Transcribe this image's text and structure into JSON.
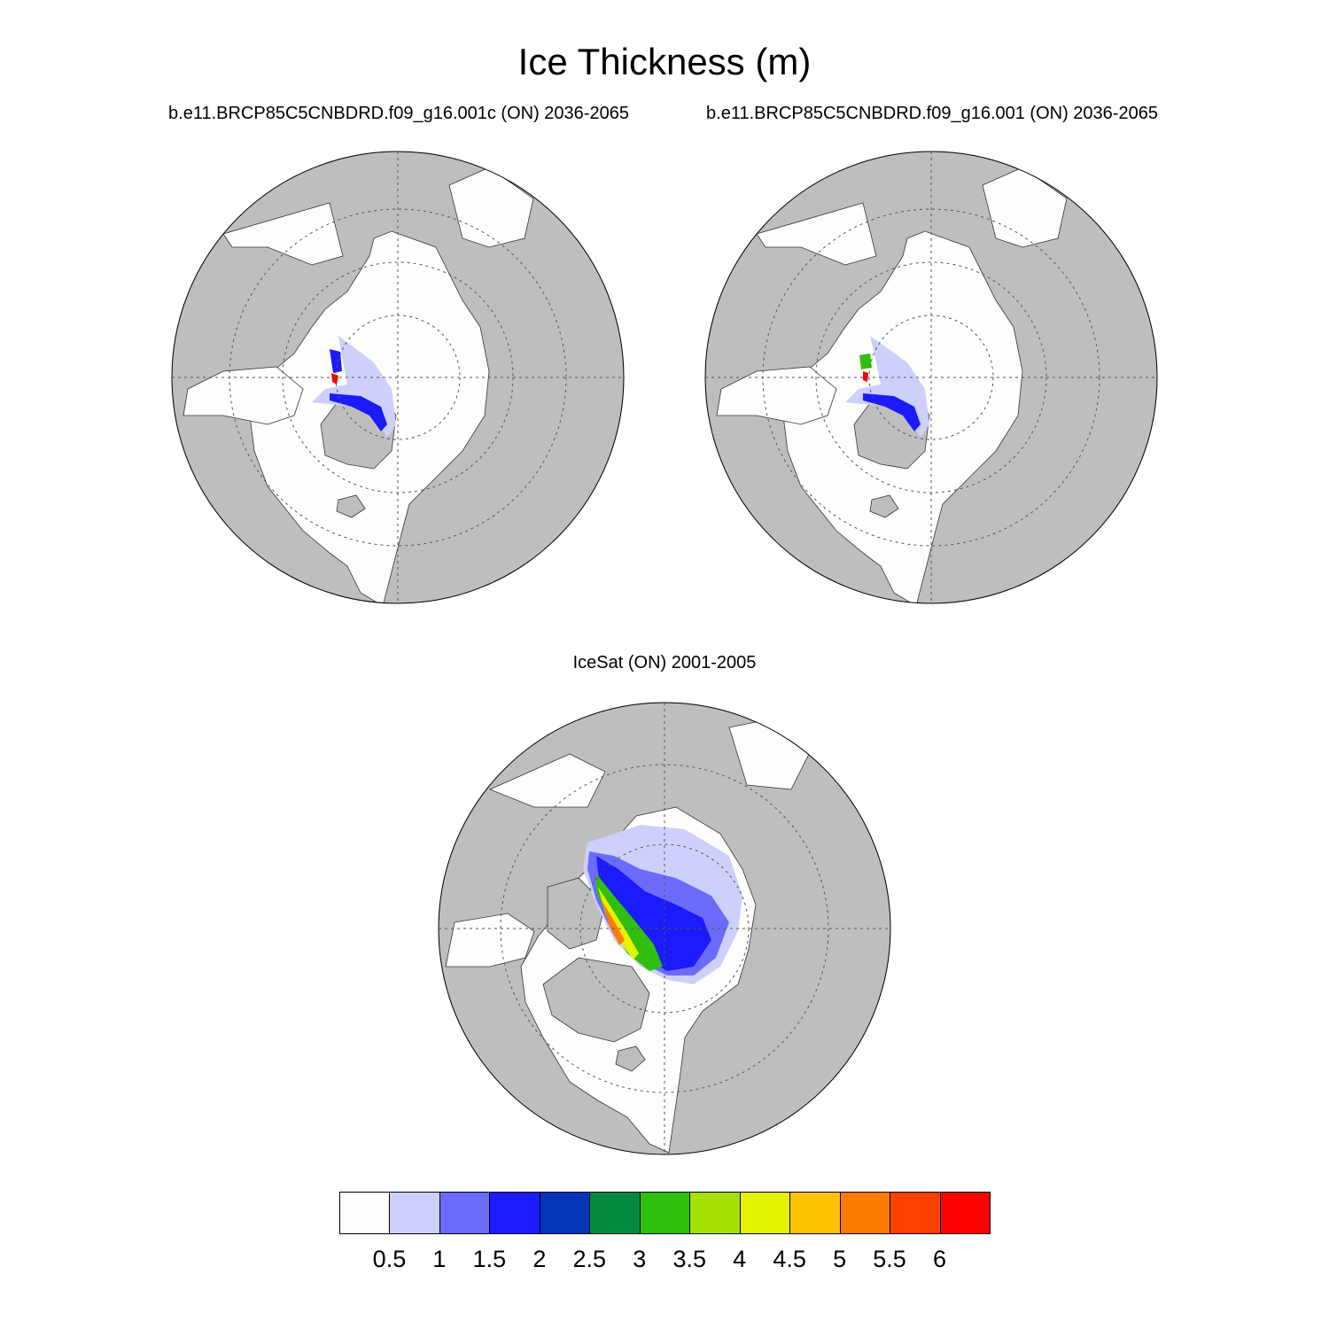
{
  "figure": {
    "title": "Ice Thickness (m)",
    "panels": [
      {
        "subtitle": "b.e11.BRCP85C5CNBDRD.f09_g16.001c (ON) 2036-2065"
      },
      {
        "subtitle": "b.e11.BRCP85C5CNBDRD.f09_g16.001 (ON) 2036-2065"
      },
      {
        "subtitle": "IceSat (ON) 2001-2005"
      }
    ]
  },
  "colors": {
    "land": "#bebebe",
    "ocean": "#fdfdfb",
    "grid": "#555555"
  },
  "colorbar": {
    "labels": [
      "0.5",
      "1",
      "1.5",
      "2",
      "2.5",
      "3",
      "3.5",
      "4",
      "4.5",
      "5",
      "5.5",
      "6"
    ],
    "colors": [
      "#fdfdfb",
      "#cdd0fa",
      "#6b6bfb",
      "#1b1bfd",
      "#0435b8",
      "#03893e",
      "#2fbf0f",
      "#a6e105",
      "#e4f300",
      "#fcc400",
      "#fd7c00",
      "#fd4100",
      "#fd0000"
    ]
  }
}
